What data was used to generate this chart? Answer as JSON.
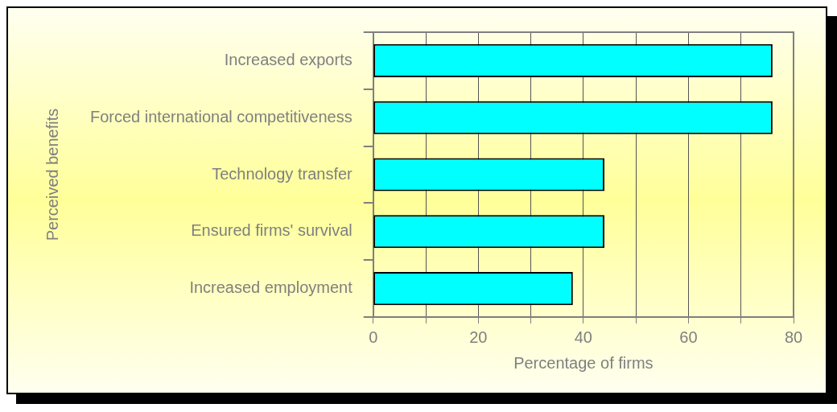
{
  "chart_data": {
    "type": "bar",
    "orientation": "horizontal",
    "xlabel": "Percentage of firms",
    "ylabel": "Perceived benefits",
    "categories": [
      "Increased exports",
      "Forced international competitiveness",
      "Technology transfer",
      "Ensured firms' survival",
      "Increased employment"
    ],
    "values": [
      76,
      76,
      44,
      44,
      38
    ],
    "color": "#00ffff",
    "xlim": [
      0,
      80
    ],
    "xticks": [
      0,
      {
        "value": 10,
        "label": null
      },
      20,
      {
        "value": 30,
        "label": null
      },
      40,
      {
        "value": 50,
        "label": null
      },
      60,
      {
        "value": 70,
        "label": null
      },
      80
    ],
    "grid": "x",
    "legend": false
  }
}
